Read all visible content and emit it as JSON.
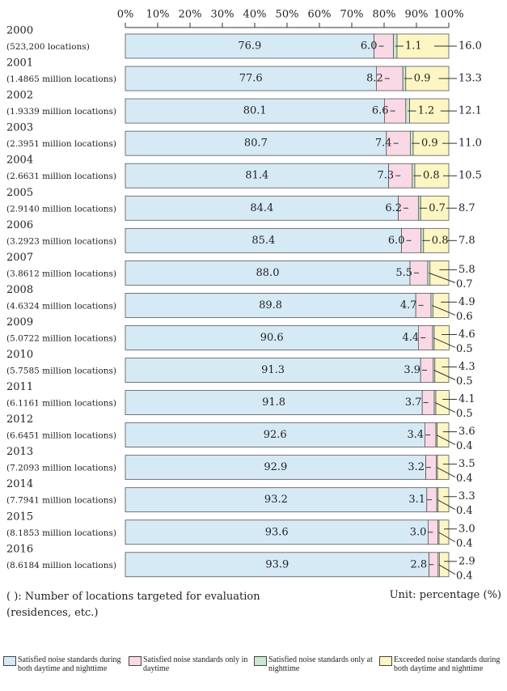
{
  "chart_data": {
    "type": "stacked_bar_horizontal_percent",
    "categories": [
      "2000",
      "2001",
      "2002",
      "2003",
      "2004",
      "2005",
      "2006",
      "2007",
      "2008",
      "2009",
      "2010",
      "2011",
      "2012",
      "2013",
      "2014",
      "2015",
      "2016"
    ],
    "category_sublabels": [
      "(523,200 locations)",
      "(1.4865 million locations)",
      "(1.9339 million locations)",
      "(2.3951 million locations)",
      "(2.6631 million locations)",
      "(2.9140 million locations)",
      "(3.2923 million locations)",
      "(3.8612 million locations)",
      "(4.6324 million locations)",
      "(5.0722 million locations)",
      "(5.7585 million locations)",
      "(6.1161 million locations)",
      "(6.6451 million locations)",
      "(7.2093 million locations)",
      "(7.7941 million locations)",
      "(8.1853 million locations)",
      "(8.6184 million locations)"
    ],
    "series": [
      {
        "name": "Satisfied noise standards during both daytime and nighttime",
        "color": "#d6eaf6",
        "values": [
          76.9,
          77.6,
          80.1,
          80.7,
          81.4,
          84.4,
          85.4,
          88.0,
          89.8,
          90.6,
          91.3,
          91.8,
          92.6,
          92.9,
          93.2,
          93.6,
          93.9
        ],
        "value_labels": [
          "76.9",
          "77.6",
          "80.1",
          "80.7",
          "81.4",
          "84.4",
          "85.4",
          "88.0",
          "89.8",
          "90.6",
          "91.3",
          "91.8",
          "92.6",
          "92.9",
          "93.2",
          "93.6",
          "93.9"
        ]
      },
      {
        "name": "Satisfied noise standards only in daytime",
        "color": "#fad9e6",
        "values": [
          6.0,
          8.2,
          6.6,
          7.4,
          7.3,
          6.2,
          6.0,
          5.5,
          4.7,
          4.4,
          3.9,
          3.7,
          3.4,
          3.2,
          3.1,
          3.0,
          2.8
        ],
        "value_labels": [
          "6.0",
          "8.2",
          "6.6",
          "7.4",
          "7.3",
          "6.2",
          "6.0",
          "5.5",
          "4.7",
          "4.4",
          "3.9",
          "3.7",
          "3.4",
          "3.2",
          "3.1",
          "3.0",
          "2.8"
        ]
      },
      {
        "name": "Satisfied noise standards only at nighttime",
        "color": "#cde8cf",
        "values": [
          1.1,
          0.9,
          1.2,
          0.9,
          0.8,
          0.7,
          0.8,
          0.7,
          0.6,
          0.5,
          0.5,
          0.5,
          0.4,
          0.4,
          0.4,
          0.4,
          0.4
        ],
        "value_labels": [
          "1.1",
          "0.9",
          "1.2",
          "0.9",
          "0.8",
          "0.7",
          "0.8",
          "0.7",
          "0.6",
          "0.5",
          "0.5",
          "0.5",
          "0.4",
          "0.4",
          "0.4",
          "0.4",
          "0.4"
        ]
      },
      {
        "name": "Exceeded noise standards during both daytime and nighttime",
        "color": "#fdf6c4",
        "values": [
          16.0,
          13.3,
          12.1,
          11.0,
          10.5,
          8.7,
          7.8,
          5.8,
          4.9,
          4.6,
          4.3,
          4.1,
          3.6,
          3.5,
          3.3,
          3.0,
          2.9
        ],
        "value_labels": [
          "16.0",
          "13.3",
          "12.1",
          "11.0",
          "10.5",
          "8.7",
          "7.8",
          "5.8",
          "4.9",
          "4.6",
          "4.3",
          "4.1",
          "3.6",
          "3.5",
          "3.3",
          "3.0",
          "2.9"
        ]
      }
    ],
    "xlim": [
      0,
      100
    ],
    "xticks": [
      {
        "value": 0,
        "label": "0%"
      },
      {
        "value": 10,
        "label": "10%"
      },
      {
        "value": 20,
        "label": "20%"
      },
      {
        "value": 30,
        "label": "30%"
      },
      {
        "value": 40,
        "label": "40%"
      },
      {
        "value": 50,
        "label": "50%"
      },
      {
        "value": 60,
        "label": "60%"
      },
      {
        "value": 70,
        "label": "70%"
      },
      {
        "value": 80,
        "label": "80%"
      },
      {
        "value": 90,
        "label": "90%"
      },
      {
        "value": 100,
        "label": "100%"
      }
    ],
    "note": "( ): Number of locations targeted for evaluation (residences, etc.)",
    "unit": "Unit: percentage (%)"
  }
}
